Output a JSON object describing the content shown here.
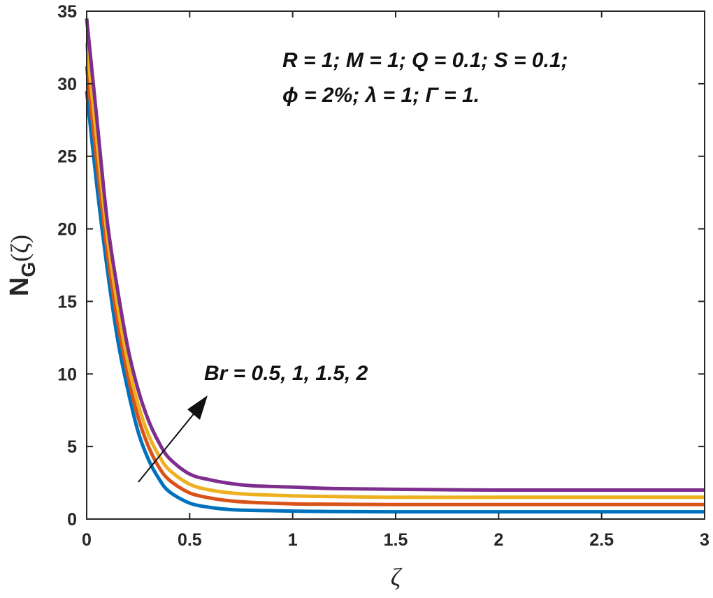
{
  "chart_data": {
    "type": "line",
    "title": "",
    "xlabel": "ζ",
    "ylabel": "N",
    "ylabel_sub": "G",
    "ylabel_arg": "(ζ)",
    "xlim": [
      0,
      3
    ],
    "ylim": [
      0,
      35
    ],
    "xticks": [
      "0",
      "0.5",
      "1",
      "1.5",
      "2",
      "2.5",
      "3"
    ],
    "yticks": [
      "0",
      "5",
      "10",
      "15",
      "20",
      "25",
      "30",
      "35"
    ],
    "grid": false,
    "legend": "none",
    "annotations": {
      "params_line1": "R = 1; M = 1; Q = 0.1; S = 0.1;",
      "params_line2": "ϕ = 2%; λ = 1; Γ = 1.",
      "arrow_label": "Br = 0.5, 1, 1.5, 2"
    },
    "x": [
      0,
      0.05,
      0.1,
      0.15,
      0.2,
      0.25,
      0.3,
      0.35,
      0.4,
      0.5,
      0.6,
      0.7,
      0.8,
      1.0,
      1.2,
      1.5,
      2.0,
      2.5,
      3.0
    ],
    "series": [
      {
        "color": "#0072BD",
        "values": [
          29.5,
          22.9,
          17.2,
          12.4,
          8.9,
          6.0,
          4.1,
          2.8,
          1.9,
          1.1,
          0.8,
          0.65,
          0.6,
          0.55,
          0.52,
          0.5,
          0.5,
          0.5,
          0.5
        ]
      },
      {
        "color": "#D95319",
        "values": [
          31.2,
          24.5,
          18.4,
          13.6,
          9.9,
          7.0,
          5.0,
          3.6,
          2.7,
          1.8,
          1.45,
          1.25,
          1.15,
          1.05,
          1.02,
          1.0,
          1.0,
          1.0,
          1.0
        ]
      },
      {
        "color": "#EDB120",
        "values": [
          32.8,
          26.0,
          19.5,
          14.7,
          10.8,
          7.9,
          5.8,
          4.4,
          3.4,
          2.4,
          2.0,
          1.8,
          1.7,
          1.6,
          1.55,
          1.5,
          1.5,
          1.5,
          1.5
        ]
      },
      {
        "color": "#7E2F8E",
        "values": [
          34.5,
          27.5,
          20.5,
          15.8,
          11.8,
          8.9,
          6.8,
          5.3,
          4.2,
          3.1,
          2.7,
          2.45,
          2.3,
          2.2,
          2.1,
          2.05,
          2.0,
          2.0,
          2.0
        ]
      }
    ]
  }
}
